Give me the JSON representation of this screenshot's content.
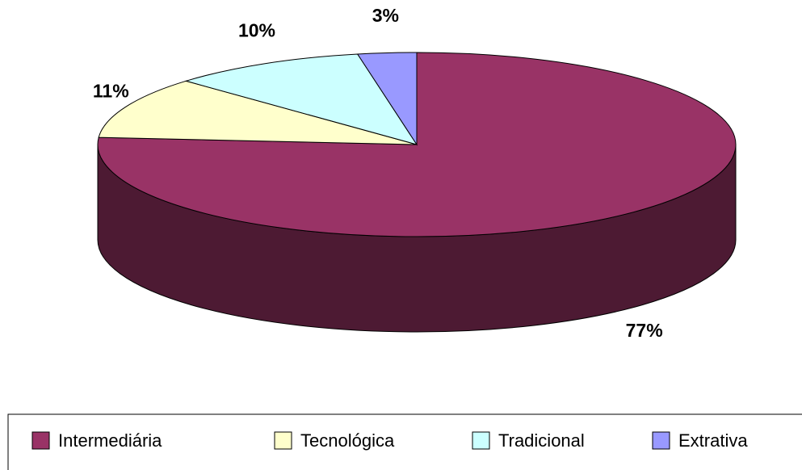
{
  "chart_data": {
    "type": "pie3d",
    "categories": [
      "Intermediária",
      "Tecnológica",
      "Tradicional",
      "Extrativa"
    ],
    "values": [
      77,
      11,
      10,
      3
    ],
    "value_labels": [
      "77%",
      "11%",
      "10%",
      "3%"
    ],
    "colors": [
      "#993366",
      "#ffffcc",
      "#ccffff",
      "#9999ff"
    ],
    "legend": "bottom"
  }
}
